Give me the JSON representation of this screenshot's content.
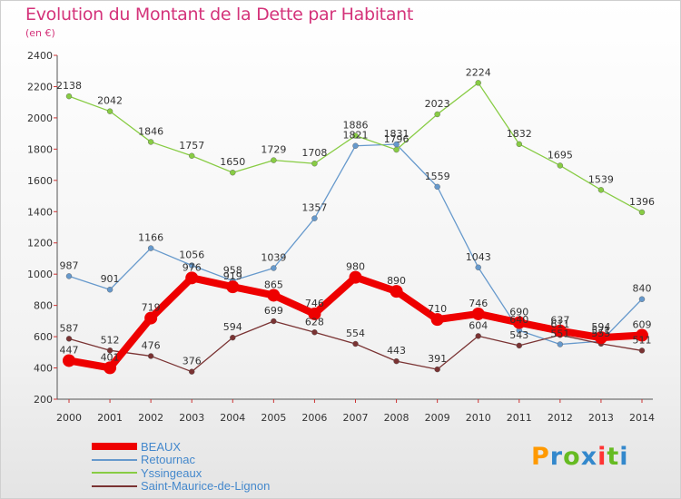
{
  "title": "Evolution du Montant de la Dette par Habitant",
  "unit": "(en €)",
  "logo": {
    "text": "Proxiti",
    "colors": [
      "#ff9900",
      "#3388cc",
      "#66bb22",
      "#3388cc",
      "#ff3333",
      "#66bb22",
      "#3388cc"
    ]
  },
  "chart_data": {
    "type": "line",
    "title": "Evolution du Montant de la Dette par Habitant",
    "subtitle": "(en €)",
    "x": [
      "2000",
      "2001",
      "2002",
      "2003",
      "2004",
      "2005",
      "2006",
      "2007",
      "2008",
      "2009",
      "2010",
      "2011",
      "2012",
      "2013",
      "2014"
    ],
    "ylim": [
      200,
      2400
    ],
    "yticks": [
      200,
      400,
      600,
      800,
      1000,
      1200,
      1400,
      1600,
      1800,
      2000,
      2200,
      2400
    ],
    "grid": false,
    "legend_position": "bottom-left",
    "series": [
      {
        "name": "BEAUX",
        "color": "#ee0000",
        "width": 8,
        "values": [
          447,
          401,
          719,
          976,
          919,
          865,
          746,
          980,
          890,
          710,
          746,
          690,
          637,
          594,
          609
        ]
      },
      {
        "name": "Retournac",
        "color": "#6699cc",
        "width": 1.3,
        "values": [
          987,
          901,
          1166,
          1056,
          958,
          1039,
          1357,
          1821,
          1831,
          1559,
          1043,
          640,
          551,
          571,
          840
        ]
      },
      {
        "name": "Yssingeaux",
        "color": "#88cc44",
        "width": 1.3,
        "values": [
          2138,
          2042,
          1846,
          1757,
          1650,
          1729,
          1708,
          1886,
          1796,
          2023,
          2224,
          1832,
          1695,
          1539,
          1396
        ]
      },
      {
        "name": "Saint-Maurice-de-Lignon",
        "color": "#7a3333",
        "width": 1.3,
        "values": [
          587,
          512,
          476,
          376,
          594,
          699,
          628,
          554,
          443,
          391,
          604,
          543,
          611,
          555,
          511
        ]
      }
    ]
  }
}
